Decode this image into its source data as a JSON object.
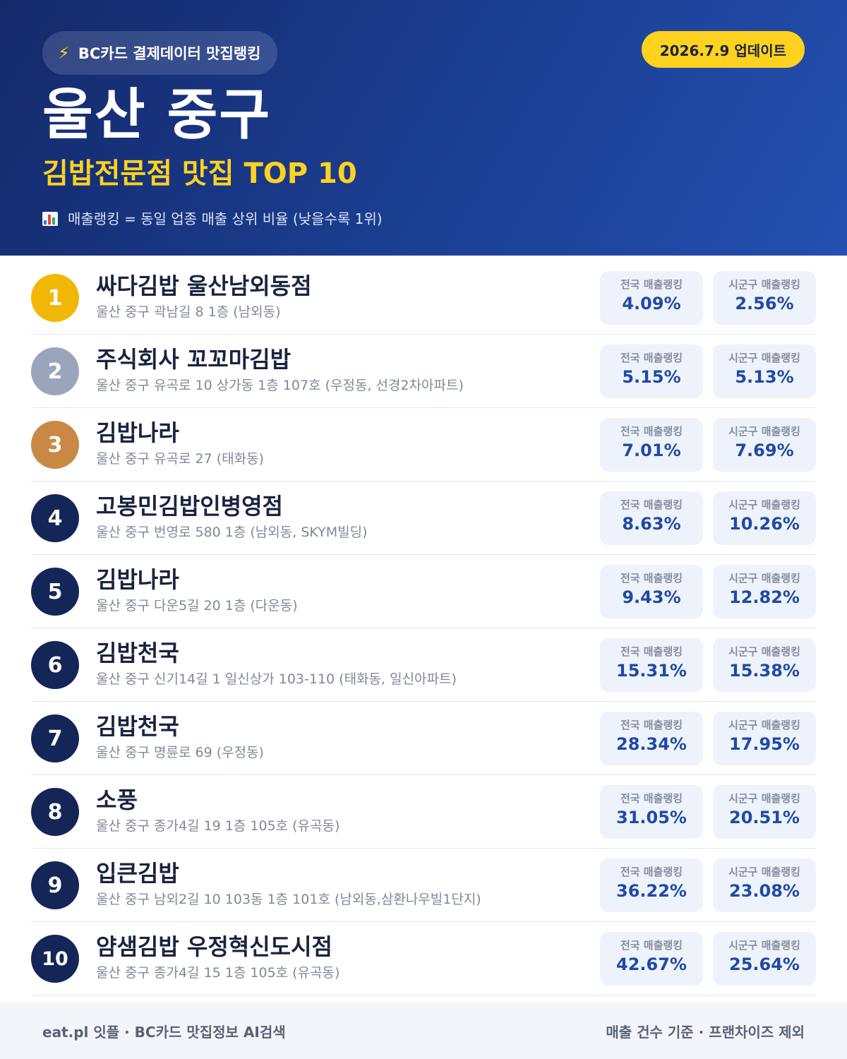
{
  "header": {
    "badge_icon": "lightning-icon",
    "badge_text": "BC카드 결제데이터 맛집랭킹",
    "update_date": "2026.7.9 업데이트",
    "title": "울산 중구",
    "subtitle": "김밥전문점 맛집 TOP 10",
    "note_icon": "bar-chart-icon",
    "note": "매출랭킹 = 동일 업종 매출 상위 비율 (낮을수록 1위)"
  },
  "colors": {
    "gold": "#f2b705",
    "silver": "#9aa5bb",
    "bronze": "#c98945",
    "navy": "#132657",
    "accent_yellow": "#ffd21f",
    "value_blue": "#1f4aa6"
  },
  "labels": {
    "national": "전국 매출랭킹",
    "local": "시군구 매출랭킹"
  },
  "restaurants": [
    {
      "rank": "1",
      "name": "싸다김밥 울산남외동점",
      "address": "울산 중구 곽남길 8 1층 (남외동)",
      "national": "4.09%",
      "local": "2.56%"
    },
    {
      "rank": "2",
      "name": "주식회사 꼬꼬마김밥",
      "address": "울산 중구 유곡로 10 상가동 1층 107호 (우정동, 선경2차아파트)",
      "national": "5.15%",
      "local": "5.13%"
    },
    {
      "rank": "3",
      "name": "김밥나라",
      "address": "울산 중구 유곡로 27 (태화동)",
      "national": "7.01%",
      "local": "7.69%"
    },
    {
      "rank": "4",
      "name": "고봉민김밥인병영점",
      "address": "울산 중구 번영로 580 1층 (남외동, SKYM빌딩)",
      "national": "8.63%",
      "local": "10.26%"
    },
    {
      "rank": "5",
      "name": "김밥나라",
      "address": "울산 중구 다운5길 20 1층 (다운동)",
      "national": "9.43%",
      "local": "12.82%"
    },
    {
      "rank": "6",
      "name": "김밥천국",
      "address": "울산 중구 신기14길 1 일신상가 103-110 (태화동, 일신아파트)",
      "national": "15.31%",
      "local": "15.38%"
    },
    {
      "rank": "7",
      "name": "김밥천국",
      "address": "울산 중구 명륜로 69 (우정동)",
      "national": "28.34%",
      "local": "17.95%"
    },
    {
      "rank": "8",
      "name": "소풍",
      "address": "울산 중구 종가4길 19 1층 105호 (유곡동)",
      "national": "31.05%",
      "local": "20.51%"
    },
    {
      "rank": "9",
      "name": "입큰김밥",
      "address": "울산 중구 남외2길 10 103동 1층 101호 (남외동,삼환나우빌1단지)",
      "national": "36.22%",
      "local": "23.08%"
    },
    {
      "rank": "10",
      "name": "얌샘김밥 우정혁신도시점",
      "address": "울산 중구 종가4길 15 1층 105호 (유곡동)",
      "national": "42.67%",
      "local": "25.64%"
    }
  ],
  "footer": {
    "left": "eat.pl 잇플 · BC카드 맛집정보 AI검색",
    "right": "매출 건수 기준 · 프랜차이즈 제외"
  }
}
